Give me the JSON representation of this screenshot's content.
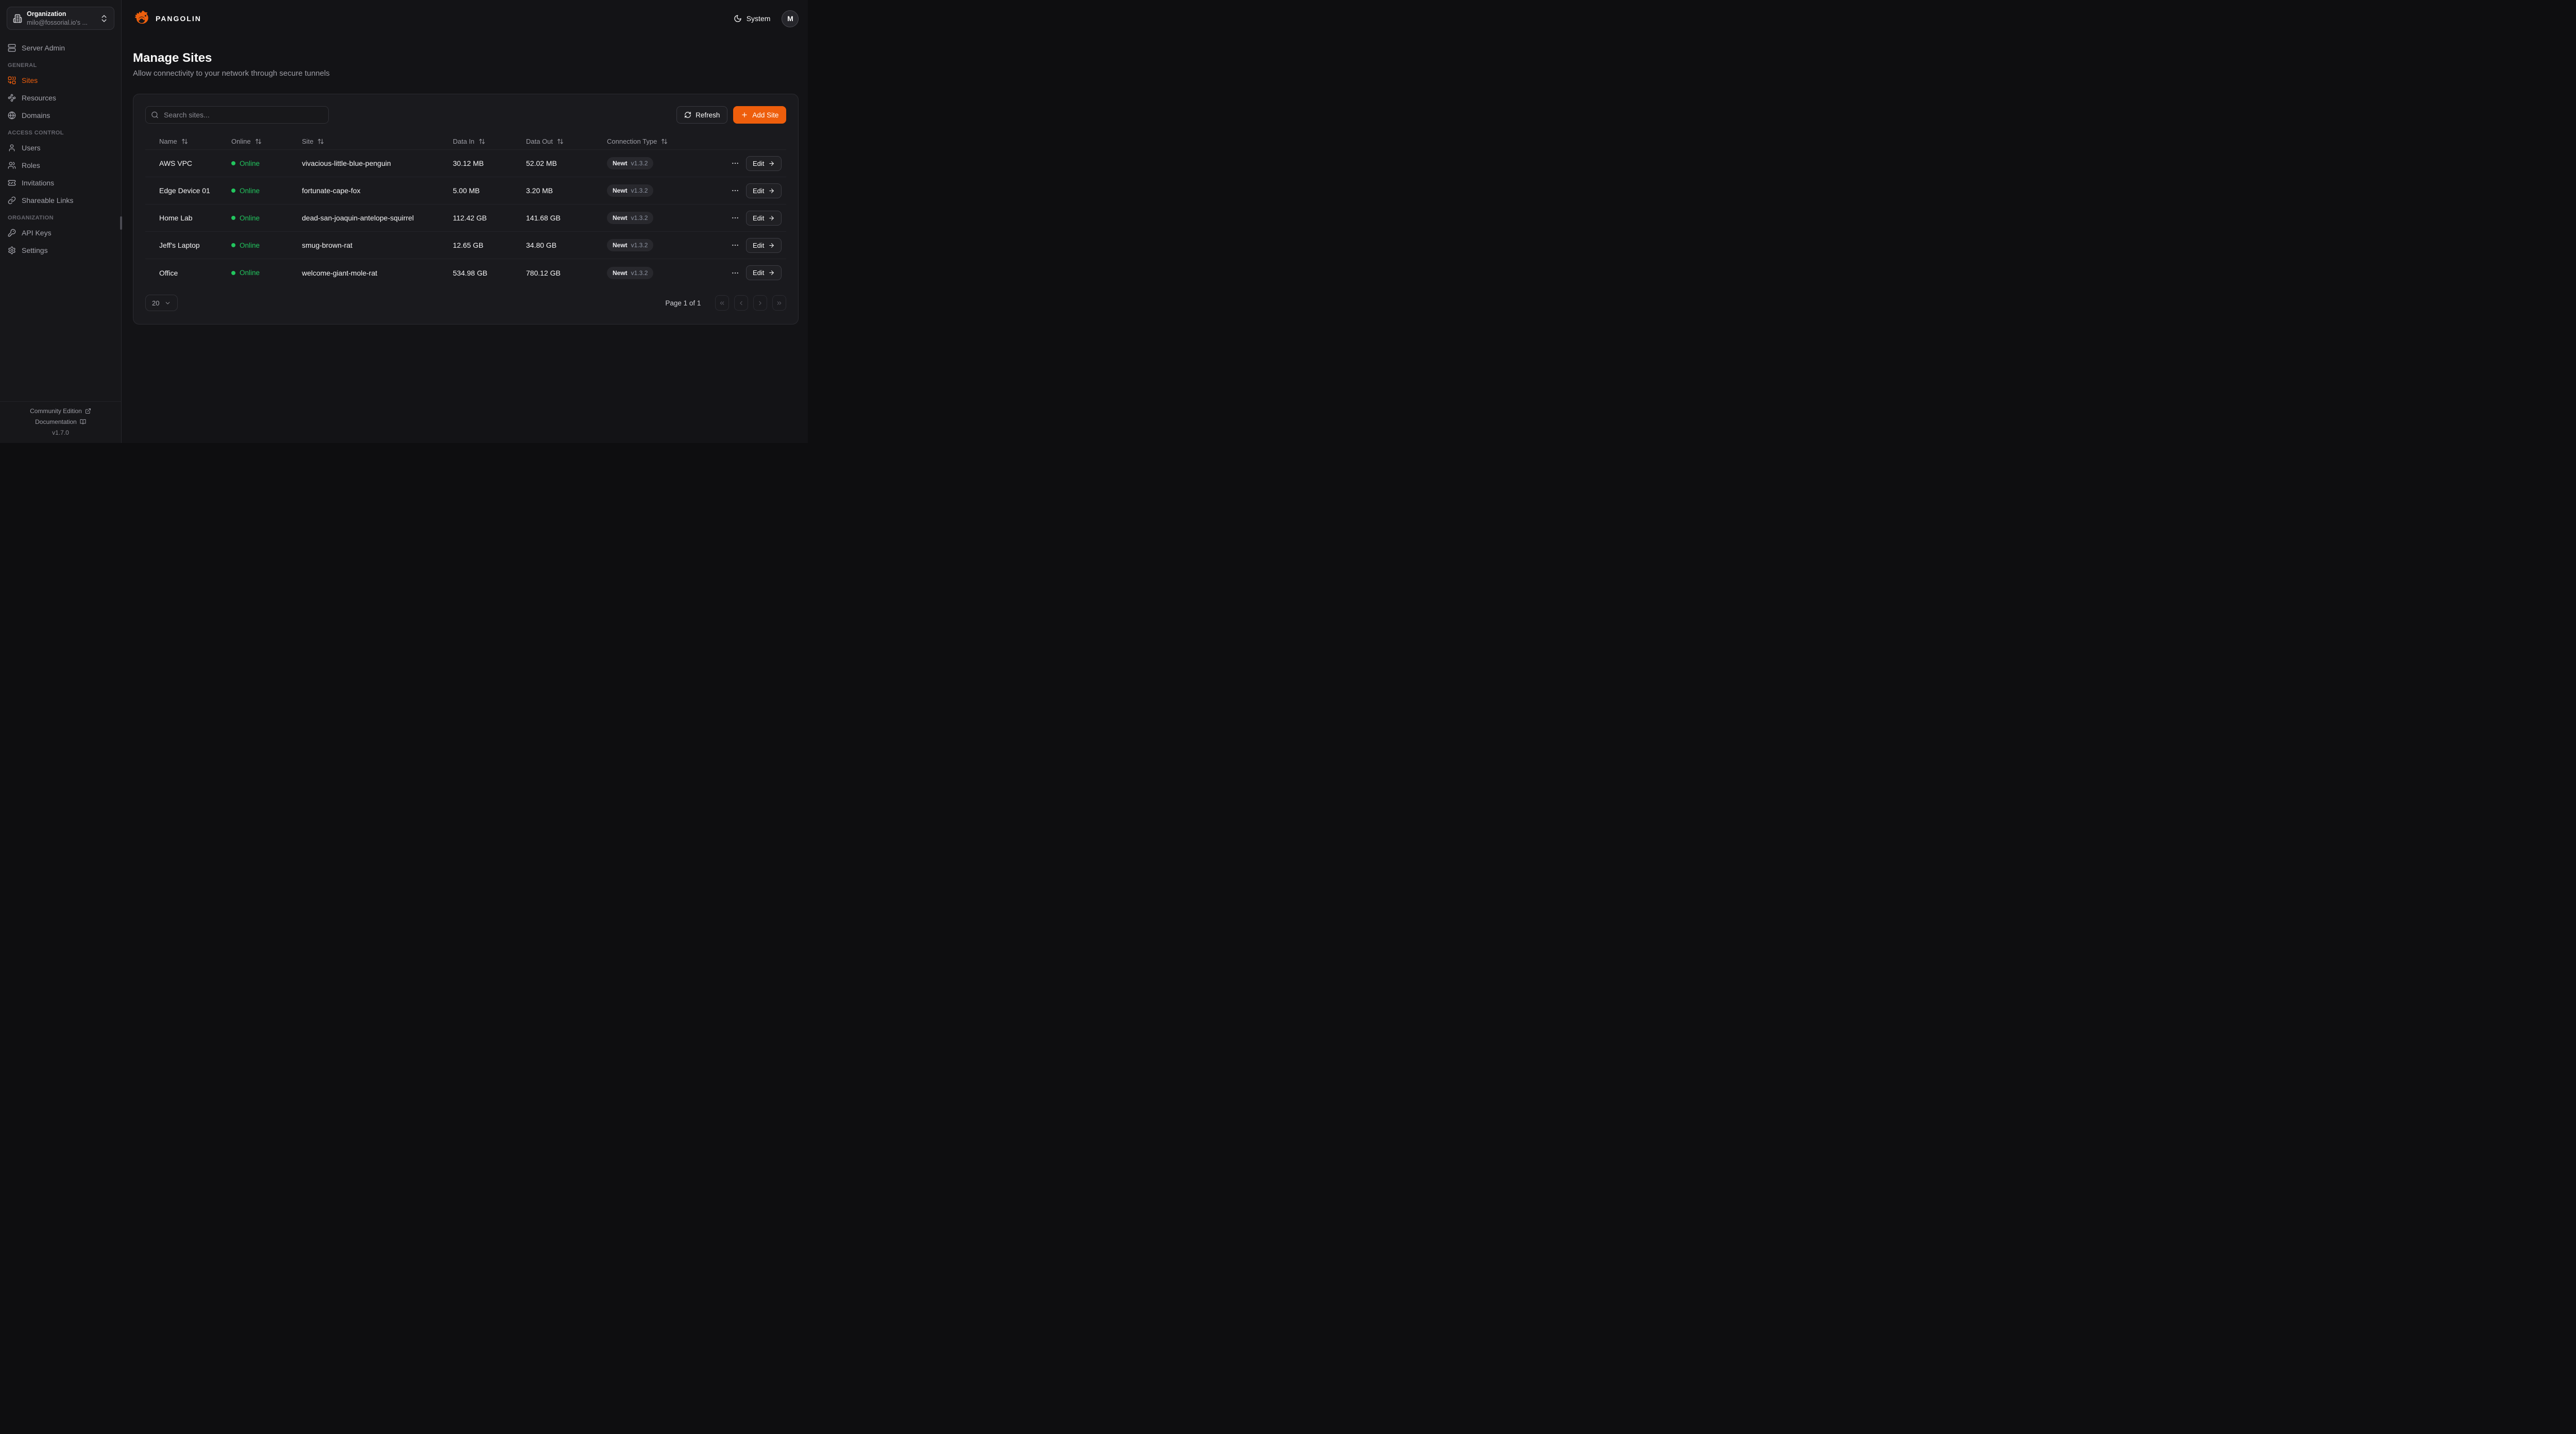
{
  "colors": {
    "accent": "#ee5e0c",
    "online_green": "#22c55e"
  },
  "topbar": {
    "brand": "PANGOLIN",
    "theme_label": "System",
    "avatar_initial": "M"
  },
  "sidebar": {
    "org_picker": {
      "label": "Organization",
      "value": "milo@fossorial.io's ...",
      "icon": "building-icon"
    },
    "items_top": [
      {
        "id": "server-admin",
        "label": "Server Admin",
        "icon": "server-icon",
        "active": false
      }
    ],
    "sections": [
      {
        "title": "GENERAL",
        "items": [
          {
            "id": "sites",
            "label": "Sites",
            "icon": "combine-icon",
            "active": true
          },
          {
            "id": "resources",
            "label": "Resources",
            "icon": "waypoints-icon",
            "active": false
          },
          {
            "id": "domains",
            "label": "Domains",
            "icon": "globe-icon",
            "active": false
          }
        ]
      },
      {
        "title": "ACCESS CONTROL",
        "items": [
          {
            "id": "users",
            "label": "Users",
            "icon": "user-icon",
            "active": false
          },
          {
            "id": "roles",
            "label": "Roles",
            "icon": "users-icon",
            "active": false
          },
          {
            "id": "invitations",
            "label": "Invitations",
            "icon": "ticket-check-icon",
            "active": false
          },
          {
            "id": "shareable-links",
            "label": "Shareable Links",
            "icon": "link-icon",
            "active": false
          }
        ]
      },
      {
        "title": "ORGANIZATION",
        "items": [
          {
            "id": "api-keys",
            "label": "API Keys",
            "icon": "key-icon",
            "active": false
          },
          {
            "id": "settings",
            "label": "Settings",
            "icon": "gear-icon",
            "active": false
          }
        ]
      }
    ],
    "footer": {
      "community": "Community Edition",
      "documentation": "Documentation",
      "version": "v1.7.0"
    }
  },
  "page": {
    "title": "Manage Sites",
    "subtitle": "Allow connectivity to your network through secure tunnels"
  },
  "toolbar": {
    "search_placeholder": "Search sites...",
    "refresh_label": "Refresh",
    "add_site_label": "Add Site"
  },
  "table": {
    "columns": [
      "Name",
      "Online",
      "Site",
      "Data In",
      "Data Out",
      "Connection Type"
    ],
    "edit_label": "Edit",
    "rows": [
      {
        "name": "AWS VPC",
        "status": "Online",
        "site": "vivacious-little-blue-penguin",
        "data_in": "30.12 MB",
        "data_out": "52.02 MB",
        "connection_type": "Newt",
        "connection_version": "v1.3.2"
      },
      {
        "name": "Edge Device 01",
        "status": "Online",
        "site": "fortunate-cape-fox",
        "data_in": "5.00 MB",
        "data_out": "3.20 MB",
        "connection_type": "Newt",
        "connection_version": "v1.3.2"
      },
      {
        "name": "Home Lab",
        "status": "Online",
        "site": "dead-san-joaquin-antelope-squirrel",
        "data_in": "112.42 GB",
        "data_out": "141.68 GB",
        "connection_type": "Newt",
        "connection_version": "v1.3.2"
      },
      {
        "name": "Jeff's Laptop",
        "status": "Online",
        "site": "smug-brown-rat",
        "data_in": "12.65 GB",
        "data_out": "34.80 GB",
        "connection_type": "Newt",
        "connection_version": "v1.3.2"
      },
      {
        "name": "Office",
        "status": "Online",
        "site": "welcome-giant-mole-rat",
        "data_in": "534.98 GB",
        "data_out": "780.12 GB",
        "connection_type": "Newt",
        "connection_version": "v1.3.2"
      }
    ]
  },
  "pagination": {
    "page_size": "20",
    "page_status": "Page 1 of 1"
  }
}
